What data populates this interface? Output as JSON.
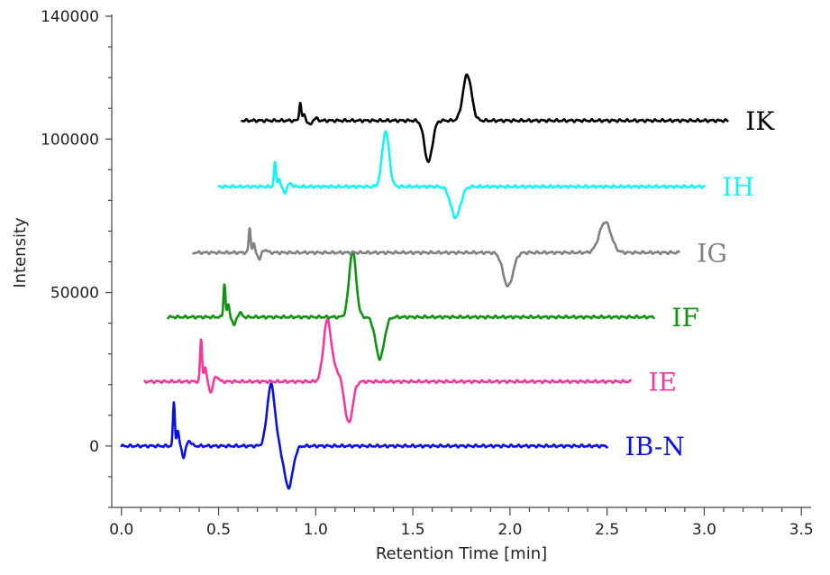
{
  "chart_data": {
    "type": "line",
    "xlabel": "Retention Time [min]",
    "ylabel": "Intensity",
    "xlim": [
      -0.05,
      3.55
    ],
    "ylim": [
      -20000,
      140000
    ],
    "x_ticks": [
      0.0,
      0.5,
      1.0,
      1.5,
      2.0,
      2.5,
      3.0,
      3.5
    ],
    "x_tick_labels": [
      "0.0",
      "0.5",
      "1.0",
      "1.5",
      "2.0",
      "2.5",
      "3.0",
      "3.5"
    ],
    "y_ticks": [
      0,
      50000,
      100000,
      140000
    ],
    "y_tick_labels": [
      "0",
      "50000",
      "100000",
      "140000"
    ],
    "grid": false,
    "legend": "inline labels at right end of each trace",
    "series": [
      {
        "name": "IB-N",
        "color": "#0b12e0",
        "baseline": 0,
        "x_start": 0.0,
        "x_end": 2.5,
        "void_spike": {
          "x": 0.27,
          "height": 14000
        },
        "features": [
          {
            "x": 0.77,
            "height": 20000,
            "width": 0.02
          },
          {
            "x": 0.86,
            "height": -13500,
            "width": 0.022
          }
        ]
      },
      {
        "name": "IE",
        "color": "#f4399a",
        "baseline": 21000,
        "x_start": 0.12,
        "x_end": 2.62,
        "void_spike": {
          "x": 0.41,
          "height": 14000
        },
        "features": [
          {
            "x": 1.06,
            "height": 20000,
            "width": 0.02
          },
          {
            "x": 1.11,
            "height": 3000,
            "width": 0.02
          },
          {
            "x": 1.17,
            "height": -13500,
            "width": 0.02
          }
        ]
      },
      {
        "name": "IF",
        "color": "#129212",
        "baseline": 42000,
        "x_start": 0.24,
        "x_end": 2.74,
        "void_spike": {
          "x": 0.53,
          "height": 11000
        },
        "features": [
          {
            "x": 1.19,
            "height": 21500,
            "width": 0.018
          },
          {
            "x": 1.33,
            "height": -13500,
            "width": 0.022
          }
        ]
      },
      {
        "name": "IG",
        "color": "#808080",
        "baseline": 63000,
        "x_start": 0.37,
        "x_end": 2.87,
        "void_spike": {
          "x": 0.66,
          "height": 8000
        },
        "features": [
          {
            "x": 1.99,
            "height": -11000,
            "width": 0.025
          },
          {
            "x": 2.49,
            "height": 10000,
            "width": 0.03
          }
        ]
      },
      {
        "name": "IH",
        "color": "#17f2f2",
        "baseline": 84500,
        "x_start": 0.5,
        "x_end": 3.0,
        "void_spike": {
          "x": 0.79,
          "height": 8000
        },
        "features": [
          {
            "x": 1.36,
            "height": 18000,
            "width": 0.018
          },
          {
            "x": 1.72,
            "height": -10000,
            "width": 0.025
          }
        ]
      },
      {
        "name": "IK",
        "color": "#000000",
        "baseline": 106000,
        "x_start": 0.62,
        "x_end": 3.12,
        "void_spike": {
          "x": 0.92,
          "height": 6000
        },
        "features": [
          {
            "x": 1.58,
            "height": -13500,
            "width": 0.02
          },
          {
            "x": 1.78,
            "height": 15000,
            "width": 0.022
          }
        ]
      }
    ]
  }
}
